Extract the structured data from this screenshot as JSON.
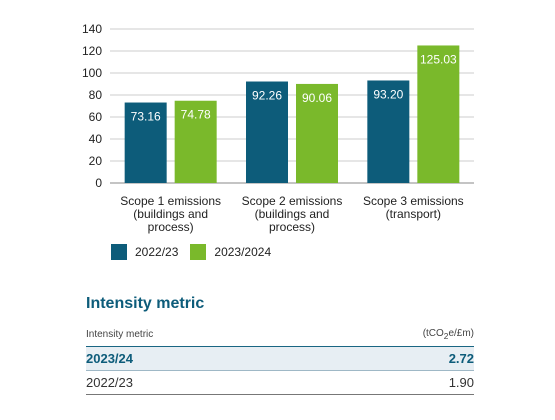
{
  "chart_data": {
    "type": "bar",
    "categories": [
      [
        "Scope 1 emissions",
        "(buildings and",
        "process)"
      ],
      [
        "Scope 2 emissions",
        "(buildings and",
        "process)"
      ],
      [
        "Scope 3 emissions",
        "(transport)"
      ]
    ],
    "series": [
      {
        "name": "2022/23",
        "values": [
          73.16,
          92.26,
          93.2
        ],
        "labels": [
          "73.16",
          "92.26",
          "93.20"
        ],
        "color": "#0d5c7a"
      },
      {
        "name": "2023/2024",
        "values": [
          74.78,
          90.06,
          125.03
        ],
        "labels": [
          "74.78",
          "90.06",
          "125.03"
        ],
        "color": "#7ab92b"
      }
    ],
    "ylim": [
      0,
      140
    ],
    "yticks": [
      0,
      20,
      40,
      60,
      80,
      100,
      120,
      140
    ],
    "grid": true,
    "legend": "bottom-left",
    "title": "",
    "xlabel": "",
    "ylabel": ""
  },
  "intensity": {
    "title": "Intensity metric",
    "header": {
      "metric": "Intensity metric",
      "unit_prefix": "(tCO",
      "unit_sub": "2",
      "unit_suffix": "e/£m)"
    },
    "rows": [
      {
        "period": "2023/24",
        "value": "2.72",
        "highlight": true
      },
      {
        "period": "2022/23",
        "value": "1.90",
        "highlight": false
      }
    ]
  },
  "colors": {
    "series_2022": "#0d5c7a",
    "series_2023": "#7ab92b",
    "title": "#0d5c7a",
    "gridline": "#cccccc"
  }
}
